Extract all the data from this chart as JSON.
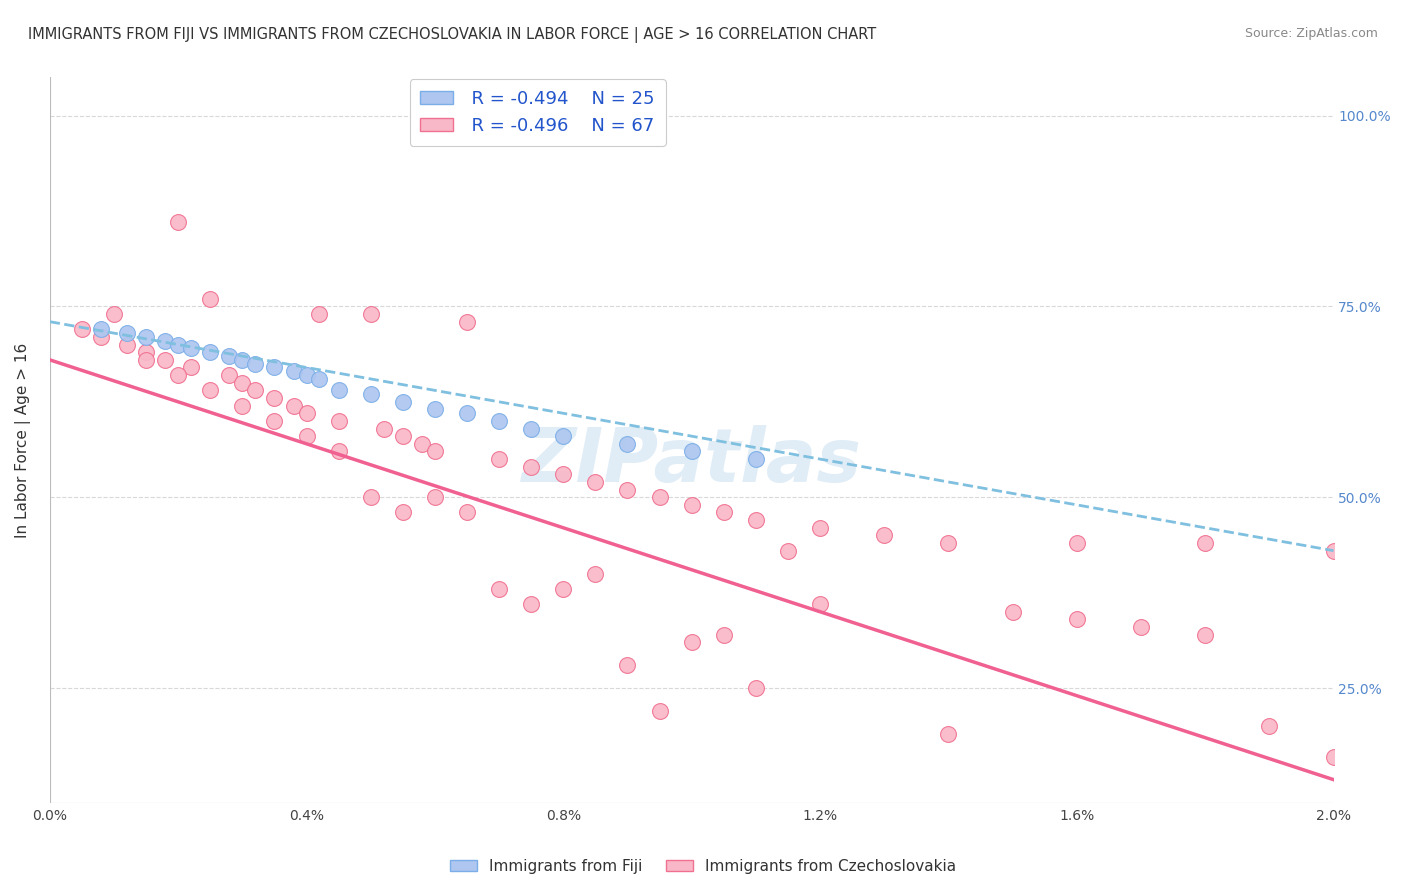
{
  "title": "IMMIGRANTS FROM FIJI VS IMMIGRANTS FROM CZECHOSLOVAKIA IN LABOR FORCE | AGE > 16 CORRELATION CHART",
  "source": "Source: ZipAtlas.com",
  "ylabel": "In Labor Force | Age > 16",
  "legend_fiji_r": "R = -0.494",
  "legend_fiji_n": "N = 25",
  "legend_czech_r": "R = -0.496",
  "legend_czech_n": "N = 67",
  "fiji_color": "#aec6f0",
  "fiji_edge": "#7baee8",
  "czech_color": "#f9b8c8",
  "czech_edge": "#f07090",
  "fiji_line_color": "#7fbfdf",
  "czech_line_color": "#f06090",
  "background_color": "#ffffff",
  "grid_color": "#d8d8d8",
  "watermark": "ZIPatlas",
  "fiji_scatter_x": [
    0.0008,
    0.0012,
    0.0015,
    0.0018,
    0.002,
    0.0022,
    0.0025,
    0.0028,
    0.003,
    0.0032,
    0.0035,
    0.0038,
    0.004,
    0.0042,
    0.0045,
    0.005,
    0.0055,
    0.006,
    0.0065,
    0.007,
    0.0075,
    0.008,
    0.009,
    0.01,
    0.011
  ],
  "fiji_scatter_y": [
    0.72,
    0.715,
    0.71,
    0.705,
    0.7,
    0.695,
    0.69,
    0.685,
    0.68,
    0.675,
    0.67,
    0.665,
    0.66,
    0.655,
    0.64,
    0.635,
    0.625,
    0.615,
    0.61,
    0.6,
    0.59,
    0.58,
    0.57,
    0.56,
    0.55
  ],
  "czech_scatter_x": [
    0.0005,
    0.0008,
    0.001,
    0.0012,
    0.0015,
    0.0018,
    0.002,
    0.0022,
    0.0025,
    0.0028,
    0.003,
    0.0032,
    0.0035,
    0.0038,
    0.004,
    0.0042,
    0.0045,
    0.005,
    0.0052,
    0.0055,
    0.0058,
    0.006,
    0.0065,
    0.007,
    0.0075,
    0.008,
    0.0085,
    0.009,
    0.0095,
    0.01,
    0.0105,
    0.011,
    0.012,
    0.013,
    0.014,
    0.015,
    0.016,
    0.017,
    0.018,
    0.019,
    0.02,
    0.0025,
    0.0045,
    0.0065,
    0.0085,
    0.0105,
    0.003,
    0.005,
    0.007,
    0.009,
    0.011,
    0.0015,
    0.0035,
    0.0055,
    0.0075,
    0.0095,
    0.0115,
    0.002,
    0.004,
    0.006,
    0.008,
    0.01,
    0.016,
    0.018,
    0.02,
    0.012,
    0.014
  ],
  "czech_scatter_y": [
    0.72,
    0.71,
    0.74,
    0.7,
    0.69,
    0.68,
    0.86,
    0.67,
    0.76,
    0.66,
    0.65,
    0.64,
    0.63,
    0.62,
    0.61,
    0.74,
    0.6,
    0.74,
    0.59,
    0.58,
    0.57,
    0.56,
    0.73,
    0.55,
    0.54,
    0.53,
    0.52,
    0.51,
    0.5,
    0.49,
    0.48,
    0.47,
    0.46,
    0.45,
    0.44,
    0.35,
    0.34,
    0.33,
    0.32,
    0.2,
    0.16,
    0.64,
    0.56,
    0.48,
    0.4,
    0.32,
    0.62,
    0.5,
    0.38,
    0.28,
    0.25,
    0.68,
    0.6,
    0.48,
    0.36,
    0.22,
    0.43,
    0.66,
    0.58,
    0.5,
    0.38,
    0.31,
    0.44,
    0.44,
    0.43,
    0.36,
    0.19
  ],
  "fiji_line": {
    "x0": 0.0,
    "y0": 0.73,
    "x1": 0.02,
    "y1": 0.43
  },
  "czech_line": {
    "x0": 0.0,
    "y0": 0.68,
    "x1": 0.02,
    "y1": 0.13
  },
  "xlim": [
    0.0,
    0.02
  ],
  "ylim": [
    0.1,
    1.05
  ],
  "y_ticks": [
    0.25,
    0.5,
    0.75,
    1.0
  ],
  "x_tick_count": 6
}
